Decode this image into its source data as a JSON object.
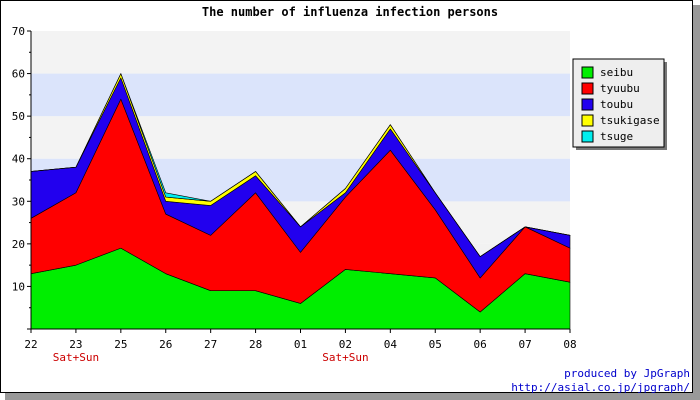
{
  "chart_data": {
    "type": "area",
    "stacked": true,
    "title": "The number of influenza infection persons",
    "categories": [
      "22",
      "23",
      "25",
      "26",
      "27",
      "28",
      "01",
      "02",
      "04",
      "05",
      "06",
      "07",
      "08"
    ],
    "sub_labels": [
      "",
      "Sat+Sun",
      "",
      "",
      "",
      "",
      "",
      "Sat+Sun",
      "",
      "",
      "",
      "",
      ""
    ],
    "ylim": [
      0,
      70
    ],
    "yticks": [
      10,
      20,
      30,
      40,
      50,
      60,
      70
    ],
    "grid": true,
    "legend_position": "right",
    "series": [
      {
        "name": "seibu",
        "color": "#00ee00",
        "values": [
          13,
          15,
          19,
          13,
          9,
          9,
          6,
          14,
          13,
          12,
          4,
          13,
          11
        ]
      },
      {
        "name": "tyuubu",
        "color": "#ff0000",
        "values": [
          13,
          17,
          35,
          14,
          13,
          23,
          12,
          17,
          29,
          16,
          8,
          11,
          8
        ]
      },
      {
        "name": "toubu",
        "color": "#2200ee",
        "values": [
          11,
          6,
          5,
          3,
          7,
          4,
          6,
          1,
          5,
          4,
          5,
          0,
          3
        ]
      },
      {
        "name": "tsukigase",
        "color": "#ffff00",
        "values": [
          0,
          0,
          1,
          1,
          1,
          1,
          0,
          1,
          1,
          0,
          0,
          0,
          0
        ]
      },
      {
        "name": "tsuge",
        "color": "#00eeee",
        "values": [
          0,
          0,
          0,
          1,
          0,
          0,
          0,
          0,
          0,
          0,
          0,
          0,
          0
        ]
      }
    ]
  },
  "credits": {
    "line1": "produced by JpGraph",
    "line2": "http://asial.co.jp/jpgraph/"
  }
}
